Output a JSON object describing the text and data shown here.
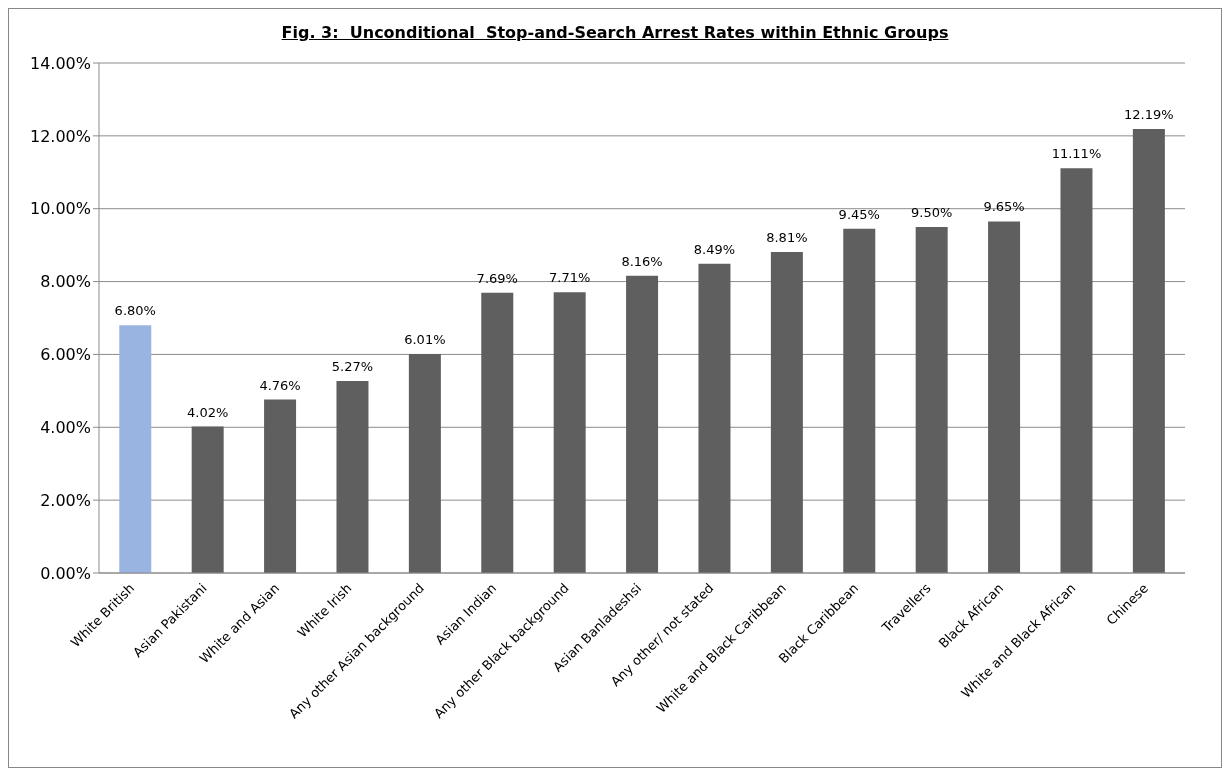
{
  "chart_data": {
    "type": "bar",
    "title": "Fig. 3:  Unconditional  Stop-and-Search Arrest Rates within Ethnic Groups",
    "categories": [
      "White British",
      "Asian Pakistani",
      "White and Asian",
      "White Irish",
      "Any other Asian background",
      "Asian Indian",
      "Any other Black background",
      "Asian Banladeshsi",
      "Any other/ not stated",
      "White and Black Caribbean",
      "Black Caribbean",
      "Travellers",
      "Black African",
      "White and Black African",
      "Chinese"
    ],
    "values": [
      6.8,
      4.02,
      4.76,
      5.27,
      6.01,
      7.69,
      7.71,
      8.16,
      8.49,
      8.81,
      9.45,
      9.5,
      9.65,
      11.11,
      12.19
    ],
    "value_labels": [
      "6.80%",
      "4.02%",
      "4.76%",
      "5.27%",
      "6.01%",
      "7.69%",
      "7.71%",
      "8.16%",
      "8.49%",
      "8.81%",
      "9.45%",
      "9.50%",
      "9.65%",
      "11.11%",
      "12.19%"
    ],
    "colors": [
      "#9ab4e2",
      "#5f5f5f",
      "#5f5f5f",
      "#5f5f5f",
      "#5f5f5f",
      "#5f5f5f",
      "#5f5f5f",
      "#5f5f5f",
      "#5f5f5f",
      "#5f5f5f",
      "#5f5f5f",
      "#5f5f5f",
      "#5f5f5f",
      "#5f5f5f",
      "#5f5f5f"
    ],
    "ylim": [
      0,
      14
    ],
    "yticks": [
      {
        "value": 0,
        "label": "0.00%"
      },
      {
        "value": 2,
        "label": "2.00%"
      },
      {
        "value": 4,
        "label": "4.00%"
      },
      {
        "value": 6,
        "label": "6.00%"
      },
      {
        "value": 8,
        "label": "8.00%"
      },
      {
        "value": 10,
        "label": "10.00%"
      },
      {
        "value": 12,
        "label": "12.00%"
      },
      {
        "value": 14,
        "label": "14.00%"
      }
    ],
    "grid": "y"
  }
}
